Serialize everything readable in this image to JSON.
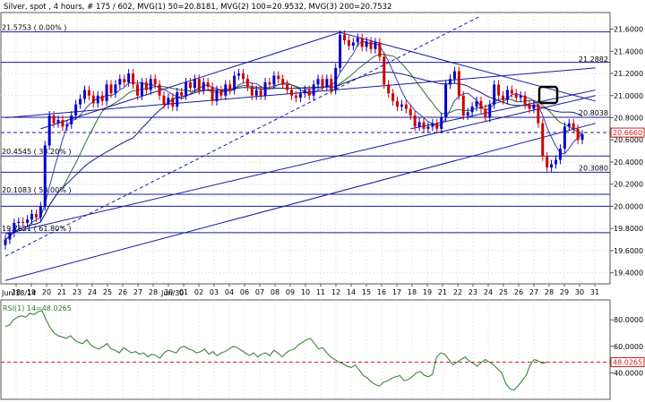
{
  "header": {
    "title": "Silver, spot , 4 hours, # 175 / 602, MVG(1) 50=20.8181, MVG(2) 100=20.9532, MVG(3) 200=20.7532"
  },
  "colors": {
    "up_bar": "#0000cc",
    "down_bar": "#cc0000",
    "trend_line": "#1a1aa0",
    "fib_line": "#1a1aa0",
    "ma1": "#3b3bbf",
    "ma2": "#2e6e2e",
    "ma3": "#1a1a80",
    "rsi": "#2a7a2a",
    "rsi_level": "#cc2222",
    "highlight_box": "#000000"
  },
  "chart_data": [
    {
      "type": "candlestick",
      "title": "Silver, spot , 4 hours",
      "xlabel": "",
      "ylabel": "",
      "ylim": [
        19.3,
        21.75
      ],
      "y_ticks": [
        "21.6000",
        "21.4000",
        "21.2000",
        "21.0000",
        "20.8000",
        "20.6000",
        "20.4000",
        "20.2000",
        "20.0000",
        "19.8000",
        "19.6000",
        "19.4000"
      ],
      "x_ticks": [
        "18",
        "19",
        "20",
        "21",
        "23",
        "24",
        "25",
        "26",
        "27",
        "28",
        "30",
        "01",
        "02",
        "03",
        "04",
        "06",
        "07",
        "08",
        "09",
        "10",
        "11",
        "12",
        "14",
        "15",
        "16",
        "17",
        "18",
        "19",
        "21",
        "22",
        "23",
        "24",
        "25",
        "26",
        "27",
        "28",
        "29",
        "30",
        "31"
      ],
      "date_labels": [
        "Jun/18/14",
        "Jun/30"
      ],
      "price_tags": [
        "21.2882",
        "20.8038",
        "20.6660",
        "20.3080"
      ],
      "fib_labels": [
        "21.5753 ( 0.00% )",
        "20.4545 ( 38.20% )",
        "20.1083 ( 50.00% )",
        "19.7621 ( 61.80% )"
      ],
      "moving_averages": [
        {
          "name": "MVG(1) 50",
          "last": 20.8181
        },
        {
          "name": "MVG(2) 100",
          "last": 20.9532
        },
        {
          "name": "MVG(3) 200",
          "last": 20.7532
        }
      ],
      "candles_close": [
        19.7,
        19.76,
        19.85,
        19.86,
        19.85,
        19.88,
        19.93,
        19.9,
        20.0,
        20.55,
        20.82,
        20.75,
        20.78,
        20.72,
        20.74,
        20.82,
        20.92,
        20.97,
        21.05,
        21.0,
        20.93,
        21.0,
        20.95,
        21.1,
        21.02,
        21.1,
        21.15,
        21.12,
        21.2,
        21.1,
        21.0,
        21.12,
        21.05,
        21.15,
        21.1,
        21.0,
        20.92,
        20.98,
        20.9,
        21.03,
        21.0,
        21.12,
        21.07,
        21.15,
        21.05,
        21.12,
        21.08,
        20.95,
        21.05,
        21.0,
        21.1,
        21.05,
        21.18,
        21.2,
        21.15,
        21.08,
        21.0,
        21.05,
        21.0,
        21.12,
        21.1,
        21.18,
        21.15,
        21.1,
        21.05,
        21.0,
        20.98,
        21.02,
        21.05,
        21.0,
        21.1,
        21.15,
        21.08,
        21.15,
        21.05,
        21.25,
        21.55,
        21.5,
        21.45,
        21.48,
        21.52,
        21.44,
        21.49,
        21.42,
        21.48,
        21.35,
        21.1,
        21.02,
        20.95,
        20.9,
        20.92,
        20.88,
        20.82,
        20.72,
        20.76,
        20.7,
        20.72,
        20.75,
        20.7,
        20.8,
        21.1,
        21.15,
        21.22,
        21.0,
        20.82,
        20.85,
        20.9,
        20.95,
        20.88,
        20.8,
        20.92,
        21.1,
        21.0,
        20.96,
        21.05,
        21.02,
        20.98,
        21.0,
        20.92,
        20.88,
        20.92,
        20.75,
        20.45,
        20.35,
        20.38,
        20.42,
        20.52,
        20.72,
        20.75,
        20.7,
        20.6,
        20.65
      ],
      "rsi": {
        "name": "RSI(1) 14=48.0265",
        "last": 48.0265,
        "level": 48.0265,
        "ylim": [
          20,
          95
        ],
        "y_ticks": [
          "80.0000",
          "60.0000",
          "40.0000"
        ],
        "values": [
          75,
          76,
          80,
          82,
          83,
          82,
          85,
          84,
          86,
          87,
          80,
          74,
          70,
          68,
          67,
          66,
          68,
          65,
          63,
          62,
          65,
          61,
          59,
          58,
          60,
          62,
          58,
          57,
          55,
          59,
          57,
          55,
          56,
          54,
          55,
          52,
          54,
          53,
          51,
          55,
          57,
          56,
          55,
          59,
          60,
          58,
          57,
          55,
          56,
          58,
          54,
          56,
          53,
          55,
          56,
          58,
          60,
          59,
          57,
          55,
          53,
          55,
          52,
          54,
          55,
          53,
          57,
          55,
          52,
          55,
          57,
          58,
          61,
          63,
          65,
          66,
          62,
          58,
          59,
          55,
          52,
          50,
          48,
          47,
          45,
          44,
          46,
          42,
          38,
          36,
          33,
          31,
          30,
          33,
          34,
          36,
          37,
          38,
          34,
          35,
          37,
          40,
          41,
          38,
          37,
          39,
          52,
          55,
          54,
          50,
          46,
          48,
          50,
          52,
          49,
          47,
          45,
          48,
          50,
          48,
          46,
          43,
          40,
          32,
          28,
          27,
          30,
          34,
          38,
          46,
          50,
          49,
          47,
          48
        ]
      }
    }
  ]
}
